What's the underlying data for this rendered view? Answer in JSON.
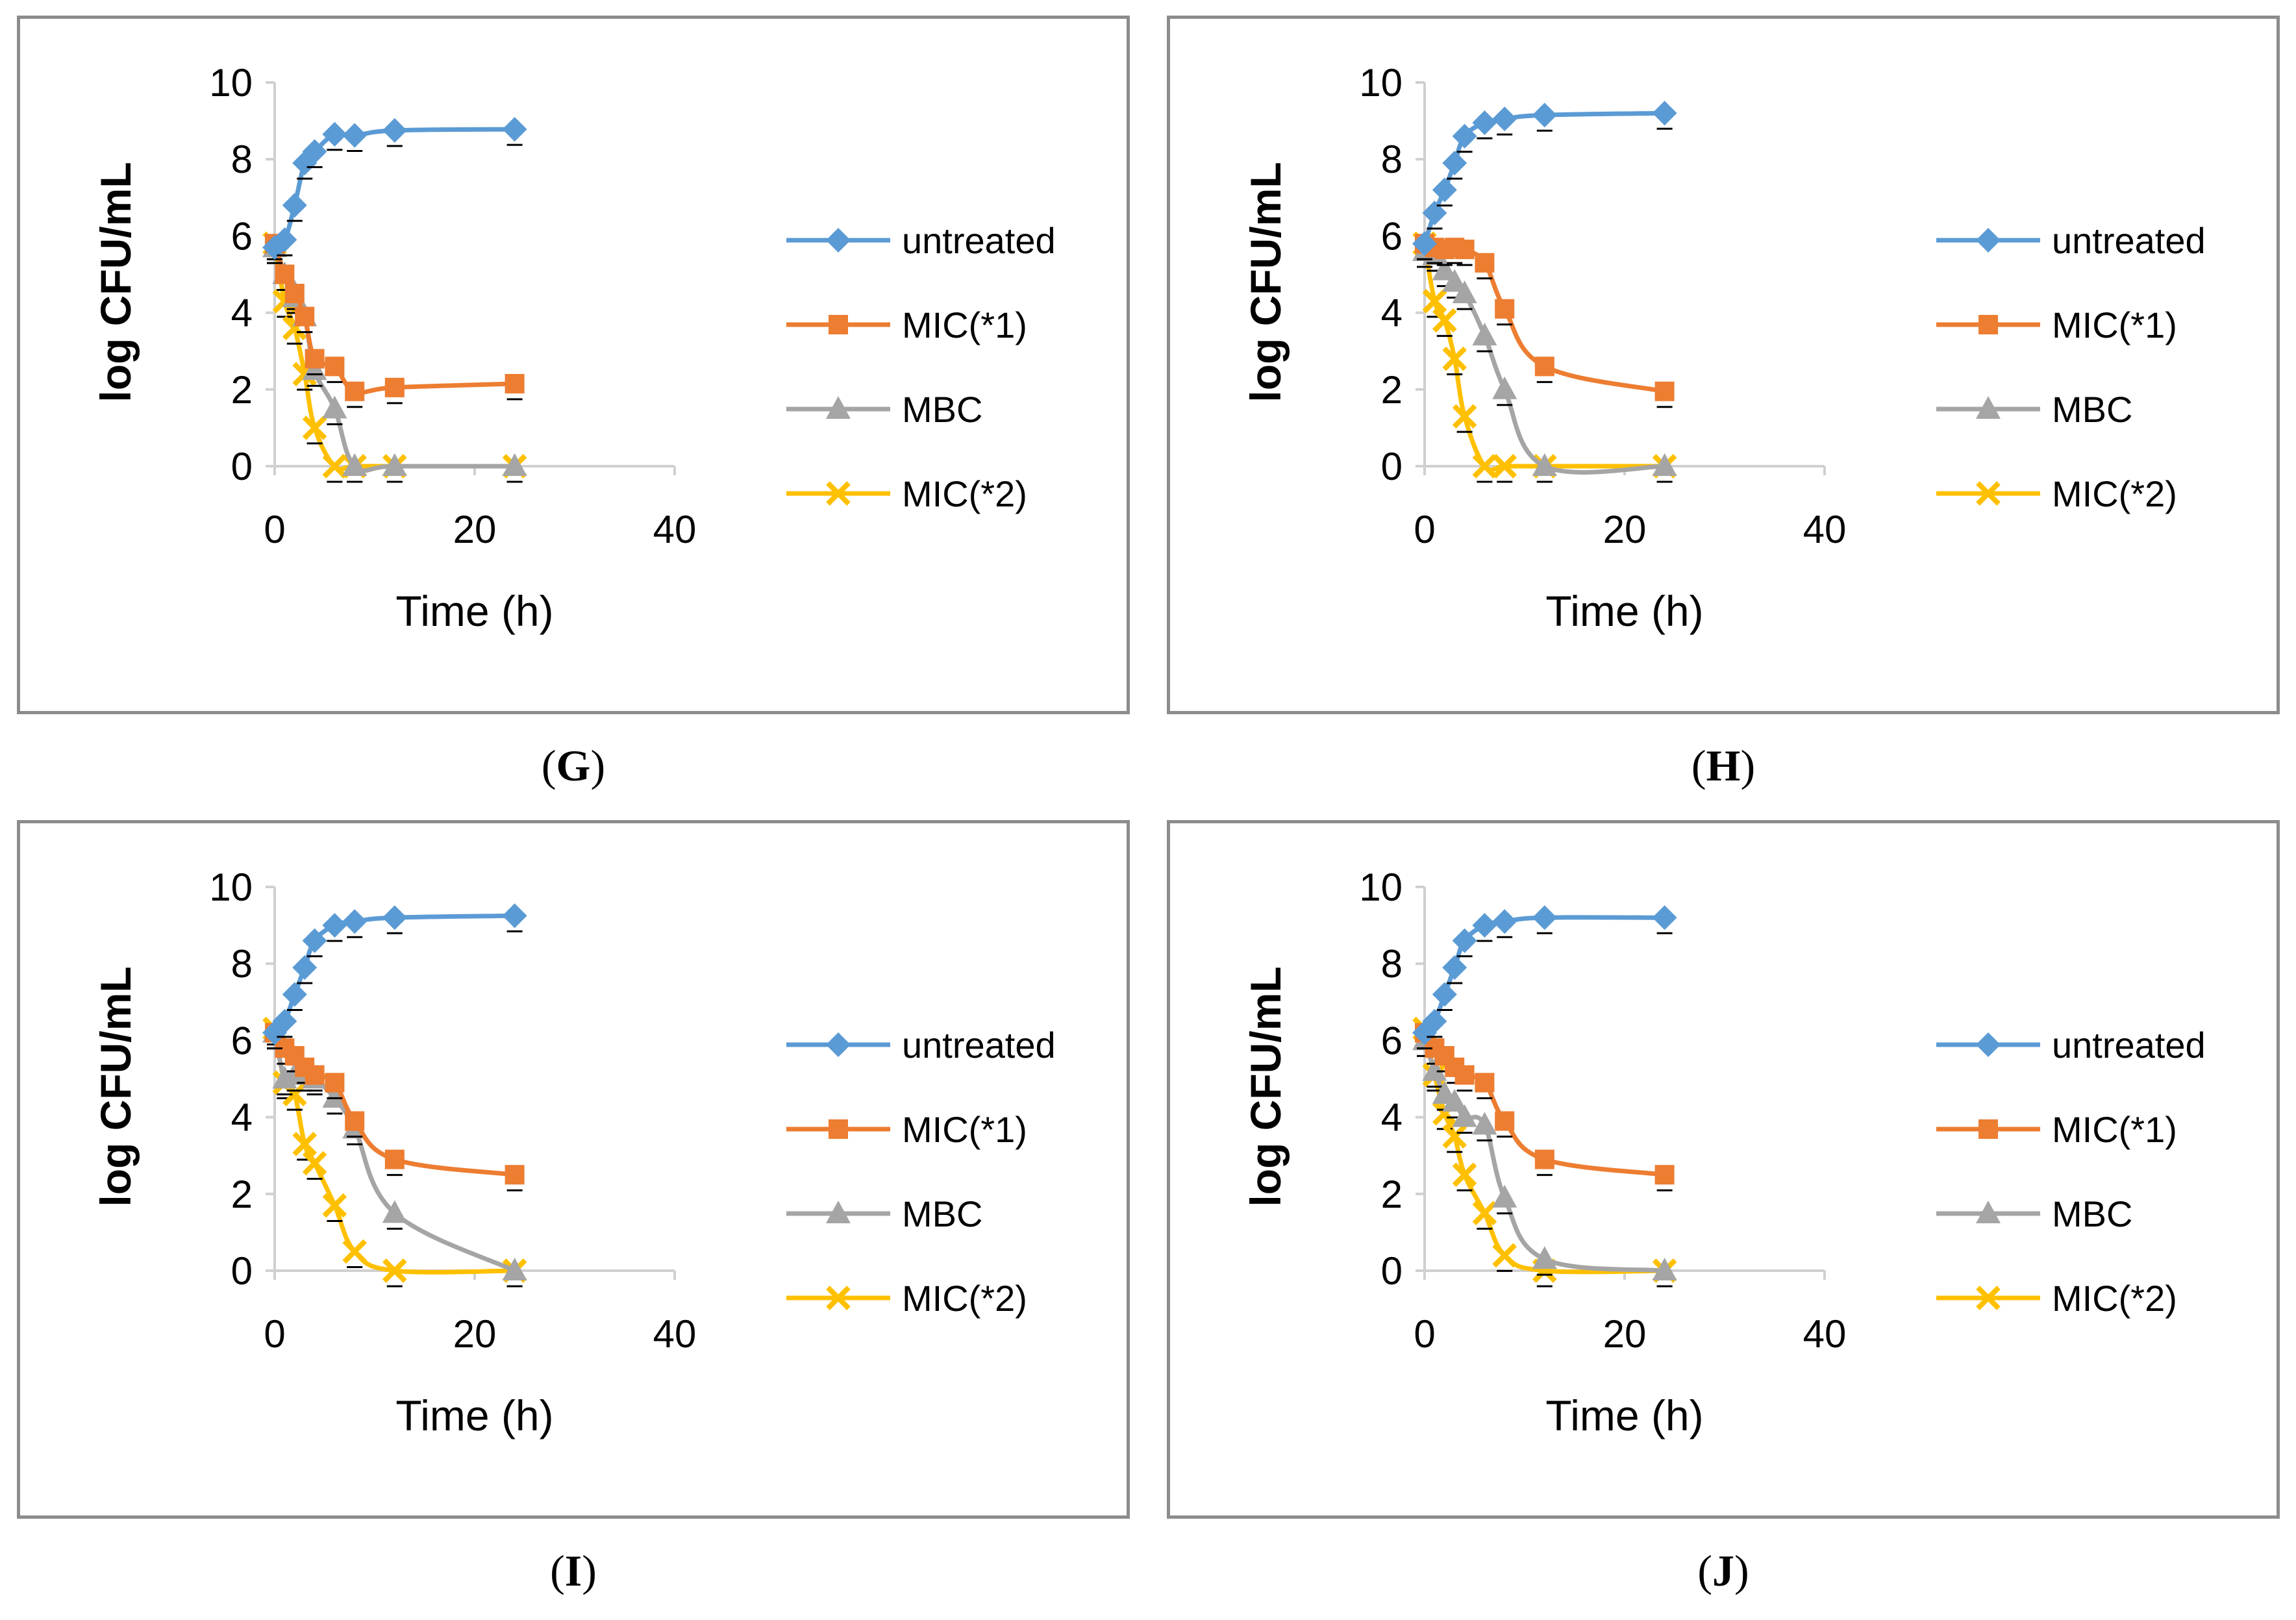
{
  "chart_data": [
    {
      "panel": "G",
      "type": "line",
      "xlabel": "Time (h)",
      "ylabel": "log CFU/mL",
      "xlim": [
        0,
        40
      ],
      "ylim": [
        0,
        10
      ],
      "xticks": [
        0,
        20,
        40
      ],
      "yticks": [
        0,
        2,
        4,
        6,
        8,
        10
      ],
      "legend": "right",
      "series": [
        {
          "name": "untreated",
          "color": "#5b9bd5",
          "marker": "diamond",
          "x": [
            0,
            1,
            2,
            3,
            4,
            6,
            8,
            12,
            24
          ],
          "y": [
            5.7,
            5.9,
            6.8,
            7.9,
            8.2,
            8.65,
            8.62,
            8.75,
            8.78
          ]
        },
        {
          "name": "MIC(*1)",
          "color": "#ed7d31",
          "marker": "square",
          "x": [
            0,
            1,
            2,
            3,
            4,
            6,
            8,
            12,
            24
          ],
          "y": [
            5.8,
            5.0,
            4.5,
            3.9,
            2.8,
            2.6,
            1.95,
            2.05,
            2.15
          ]
        },
        {
          "name": "MBC",
          "color": "#a5a5a5",
          "marker": "triangle",
          "x": [
            0,
            1,
            2,
            3,
            4,
            6,
            8,
            12,
            24
          ],
          "y": [
            5.7,
            5.0,
            4.4,
            3.9,
            2.5,
            1.5,
            0.0,
            0.0,
            0.0
          ]
        },
        {
          "name": "MIC(*2)",
          "color": "#ffc000",
          "marker": "x",
          "x": [
            0,
            1,
            2,
            3,
            4,
            6,
            8,
            12,
            24
          ],
          "y": [
            5.8,
            4.3,
            3.6,
            2.4,
            1.0,
            0.0,
            0.0,
            0.0,
            0.0
          ]
        }
      ]
    },
    {
      "panel": "H",
      "type": "line",
      "xlabel": "Time (h)",
      "ylabel": "log CFU/mL",
      "xlim": [
        0,
        40
      ],
      "ylim": [
        0,
        10
      ],
      "xticks": [
        0,
        20,
        40
      ],
      "yticks": [
        0,
        2,
        4,
        6,
        8,
        10
      ],
      "legend": "right",
      "series": [
        {
          "name": "untreated",
          "color": "#5b9bd5",
          "marker": "diamond",
          "x": [
            0,
            1,
            2,
            3,
            4,
            6,
            8,
            12,
            24
          ],
          "y": [
            5.8,
            6.6,
            7.2,
            7.9,
            8.6,
            8.95,
            9.05,
            9.15,
            9.2
          ]
        },
        {
          "name": "MIC(*1)",
          "color": "#ed7d31",
          "marker": "square",
          "x": [
            0,
            1,
            2,
            3,
            4,
            6,
            8,
            12,
            24
          ],
          "y": [
            5.8,
            5.7,
            5.65,
            5.7,
            5.65,
            5.3,
            4.1,
            2.6,
            1.95
          ]
        },
        {
          "name": "MBC",
          "color": "#a5a5a5",
          "marker": "triangle",
          "x": [
            0,
            1,
            2,
            3,
            4,
            6,
            8,
            12,
            24
          ],
          "y": [
            5.6,
            5.5,
            5.1,
            4.8,
            4.5,
            3.4,
            2.0,
            0.0,
            0.0
          ]
        },
        {
          "name": "MIC(*2)",
          "color": "#ffc000",
          "marker": "x",
          "x": [
            0,
            1,
            2,
            3,
            4,
            6,
            8,
            12,
            24
          ],
          "y": [
            5.8,
            4.3,
            3.8,
            2.8,
            1.3,
            0.0,
            0.0,
            0.0,
            0.0
          ]
        }
      ]
    },
    {
      "panel": "I",
      "type": "line",
      "xlabel": "Time (h)",
      "ylabel": "log CFU/mL",
      "xlim": [
        0,
        40
      ],
      "ylim": [
        0,
        10
      ],
      "xticks": [
        0,
        20,
        40
      ],
      "yticks": [
        0,
        2,
        4,
        6,
        8,
        10
      ],
      "legend": "right",
      "series": [
        {
          "name": "untreated",
          "color": "#5b9bd5",
          "marker": "diamond",
          "x": [
            0,
            1,
            2,
            3,
            4,
            6,
            8,
            12,
            24
          ],
          "y": [
            6.2,
            6.5,
            7.2,
            7.9,
            8.6,
            9.0,
            9.1,
            9.2,
            9.25
          ]
        },
        {
          "name": "MIC(*1)",
          "color": "#ed7d31",
          "marker": "square",
          "x": [
            0,
            1,
            2,
            3,
            4,
            6,
            8,
            12,
            24
          ],
          "y": [
            6.2,
            5.8,
            5.6,
            5.3,
            5.1,
            4.9,
            3.9,
            2.9,
            2.5
          ]
        },
        {
          "name": "MBC",
          "color": "#a5a5a5",
          "marker": "triangle",
          "x": [
            0,
            1,
            2,
            3,
            4,
            6,
            8,
            12,
            24
          ],
          "y": [
            6.2,
            5.0,
            5.1,
            5.1,
            5.0,
            4.5,
            3.7,
            1.5,
            0.0
          ]
        },
        {
          "name": "MIC(*2)",
          "color": "#ffc000",
          "marker": "x",
          "x": [
            0,
            1,
            2,
            3,
            4,
            6,
            8,
            12,
            24
          ],
          "y": [
            6.3,
            4.9,
            4.6,
            3.3,
            2.8,
            1.7,
            0.5,
            0.0,
            0.0
          ]
        }
      ]
    },
    {
      "panel": "J",
      "type": "line",
      "xlabel": "Time (h)",
      "ylabel": "log CFU/mL",
      "xlim": [
        0,
        40
      ],
      "ylim": [
        0,
        10
      ],
      "xticks": [
        0,
        20,
        40
      ],
      "yticks": [
        0,
        2,
        4,
        6,
        8,
        10
      ],
      "legend": "right",
      "series": [
        {
          "name": "untreated",
          "color": "#5b9bd5",
          "marker": "diamond",
          "x": [
            0,
            1,
            2,
            3,
            4,
            6,
            8,
            12,
            24
          ],
          "y": [
            6.2,
            6.5,
            7.2,
            7.9,
            8.6,
            9.0,
            9.1,
            9.2,
            9.2
          ]
        },
        {
          "name": "MIC(*1)",
          "color": "#ed7d31",
          "marker": "square",
          "x": [
            0,
            1,
            2,
            3,
            4,
            6,
            8,
            12,
            24
          ],
          "y": [
            6.2,
            5.8,
            5.6,
            5.3,
            5.1,
            4.9,
            3.9,
            2.9,
            2.5
          ]
        },
        {
          "name": "MBC",
          "color": "#a5a5a5",
          "marker": "triangle",
          "x": [
            0,
            1,
            2,
            3,
            4,
            6,
            8,
            12,
            24
          ],
          "y": [
            6.0,
            5.2,
            4.6,
            4.4,
            4.0,
            3.8,
            1.9,
            0.3,
            0.0
          ]
        },
        {
          "name": "MIC(*2)",
          "color": "#ffc000",
          "marker": "x",
          "x": [
            0,
            1,
            2,
            3,
            4,
            6,
            8,
            12,
            24
          ],
          "y": [
            6.3,
            5.1,
            4.1,
            3.5,
            2.5,
            1.5,
            0.4,
            0.0,
            0.0
          ]
        }
      ]
    }
  ],
  "captions": {
    "g": "G",
    "h": "H",
    "i": "I",
    "j": "J"
  }
}
